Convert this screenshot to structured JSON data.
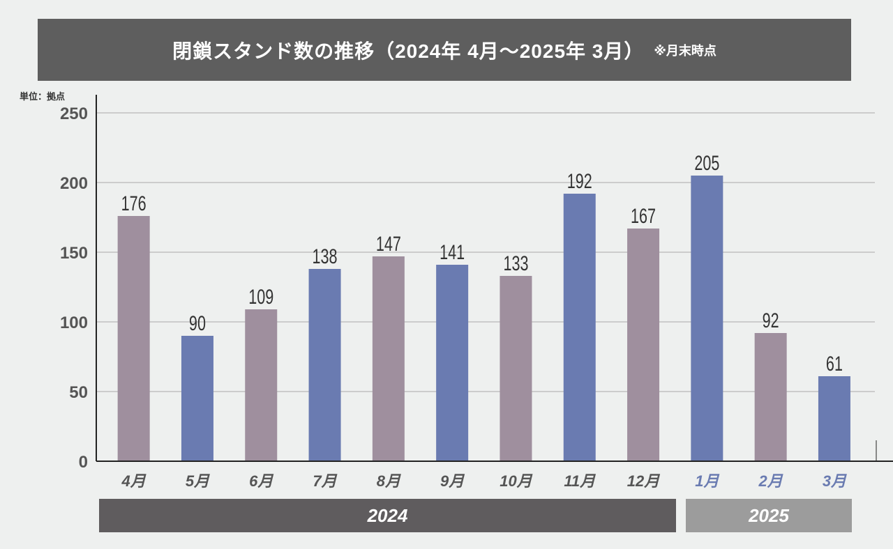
{
  "header": {
    "title": "閉鎖スタンド数の推移（2024年 4月〜2025年 3月）",
    "note": "※月末時点"
  },
  "unit_label": "単位：拠点",
  "year_bands": [
    "2024",
    "2025"
  ],
  "colors": {
    "bar_mauve": "#9f8f9e",
    "bar_blue": "#6a7bb1",
    "tick_dark": "#555555",
    "tick_blue": "#6a7bb1",
    "title_bg": "#5e5e5e"
  },
  "chart_data": {
    "type": "bar",
    "title": "閉鎖スタンド数の推移（2024年 4月〜2025年 3月）",
    "subtitle": "※月末時点",
    "ylabel": "単位：拠点",
    "xlabel": "",
    "ylim": [
      0,
      250
    ],
    "yticks": [
      0,
      50,
      100,
      150,
      200,
      250
    ],
    "grid": true,
    "categories": [
      "4月",
      "5月",
      "6月",
      "7月",
      "8月",
      "9月",
      "10月",
      "11月",
      "12月",
      "1月",
      "2月",
      "3月"
    ],
    "values": [
      176,
      90,
      109,
      138,
      147,
      141,
      133,
      192,
      167,
      205,
      92,
      61
    ],
    "bar_colors": [
      "mauve",
      "blue",
      "mauve",
      "blue",
      "mauve",
      "blue",
      "mauve",
      "blue",
      "mauve",
      "blue",
      "mauve",
      "blue"
    ],
    "category_years": [
      "2024",
      "2024",
      "2024",
      "2024",
      "2024",
      "2024",
      "2024",
      "2024",
      "2024",
      "2025",
      "2025",
      "2025"
    ]
  }
}
